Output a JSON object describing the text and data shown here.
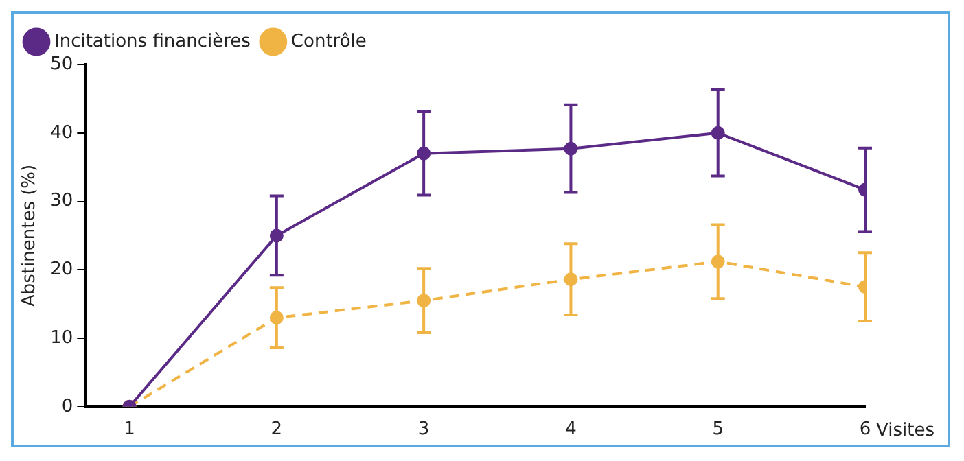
{
  "chart_data": {
    "type": "line",
    "xlabel": "Visites",
    "ylabel": "Abstinentes (%)",
    "x": [
      1,
      2,
      3,
      4,
      5,
      6
    ],
    "xlim": [
      0.7,
      6
    ],
    "xticks": [
      1,
      2,
      3,
      4,
      5,
      6
    ],
    "ylim": [
      0,
      50
    ],
    "yticks": [
      0,
      10,
      20,
      30,
      40,
      50
    ],
    "grid": false,
    "legend": "top left",
    "marker": "circle",
    "series": [
      {
        "name": "Incitations financières",
        "color": "#5b2a86",
        "line_style": "solid",
        "values": [
          0,
          25,
          37,
          37.7,
          40,
          31.7
        ],
        "errors": [
          null,
          5.8,
          6.1,
          6.4,
          6.3,
          6.1
        ]
      },
      {
        "name": "Contrôle",
        "color": "#f0b445",
        "line_style": "dashed",
        "values": [
          0,
          13,
          15.5,
          18.6,
          21.2,
          17.5
        ],
        "errors": [
          null,
          4.4,
          4.7,
          5.2,
          5.4,
          5
        ]
      }
    ]
  }
}
